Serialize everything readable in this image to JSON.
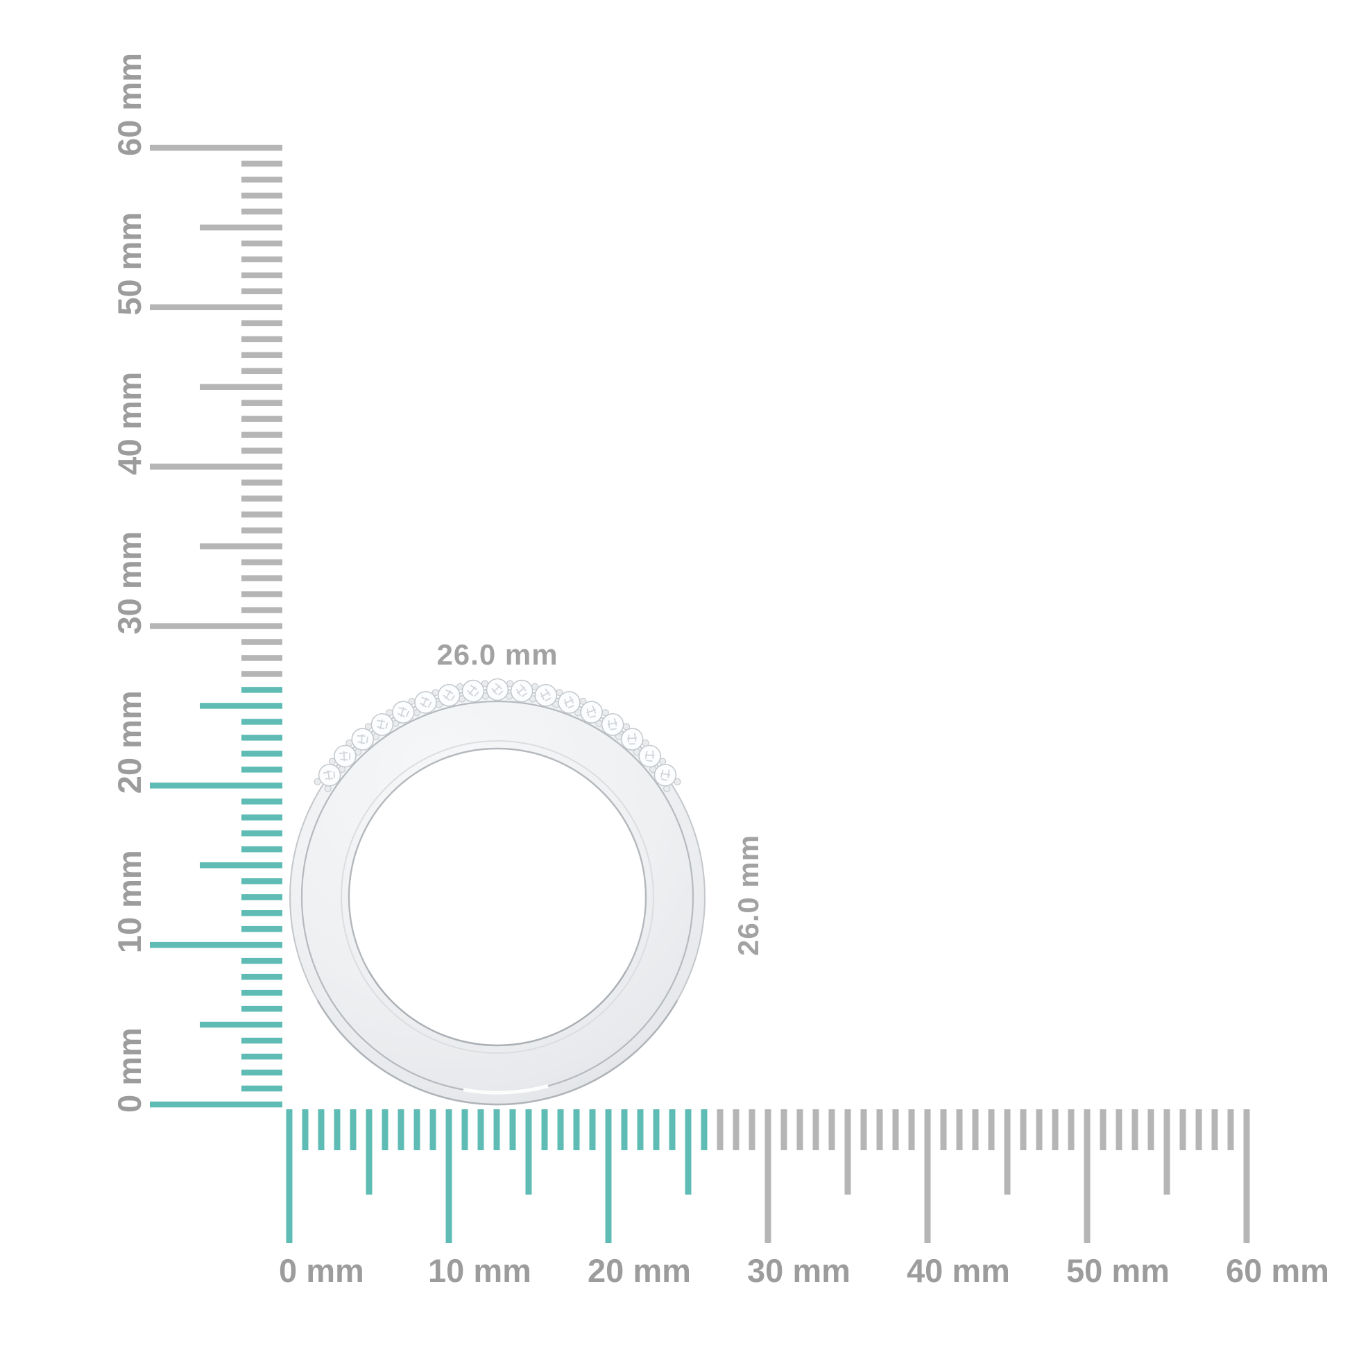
{
  "canvas": {
    "background": "#ffffff"
  },
  "colors": {
    "highlight_teal": "#5fbcb4",
    "tick_gray": "#b5b5b5",
    "ruler_label_gray": "#9c9c9c",
    "dimension_label_gray": "#a2a2a2",
    "metal_edge_gray": "#c3c6ca",
    "metal_face_light": "#f6f7f9",
    "metal_face_dark": "#dddfe2"
  },
  "vertical_ruler": {
    "unit": "mm",
    "min_mm": 0,
    "max_mm": 60,
    "minor_step_mm": 1,
    "medium_step_mm": 5,
    "major_step_mm": 10,
    "highlight_extent_mm": 26,
    "labels": [
      "0 mm",
      "10 mm",
      "20 mm",
      "30 mm",
      "40 mm",
      "50 mm",
      "60 mm"
    ]
  },
  "horizontal_ruler": {
    "unit": "mm",
    "min_mm": 0,
    "max_mm": 60,
    "minor_step_mm": 1,
    "medium_step_mm": 5,
    "major_step_mm": 10,
    "highlight_extent_mm": 26,
    "labels": [
      "0 mm",
      "10 mm",
      "20 mm",
      "30 mm",
      "40 mm",
      "50 mm",
      "60 mm"
    ]
  },
  "object": {
    "description": "Side profile of a white-metal half-eternity ring with one row of pave-set round diamonds on the upper shank",
    "width_label": "26.0 mm",
    "height_label": "26.0 mm",
    "diamond_count": 17
  }
}
